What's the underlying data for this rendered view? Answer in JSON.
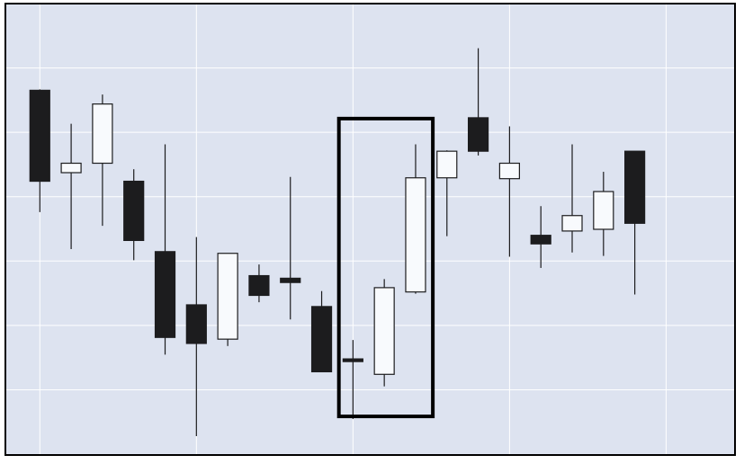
{
  "chart_data": {
    "type": "candlestick",
    "title": "",
    "xlabel": "",
    "ylabel": "",
    "grid": true,
    "colors": {
      "background": "#dde3f0",
      "grid": "#ffffff",
      "bear_body": "#1c1c1e",
      "bull_body": "#f8fafd",
      "outline": "#1c1c1e",
      "frame": "#000000"
    },
    "x_range": [
      -1.1,
      22.2
    ],
    "y_range": [
      47.4,
      100
    ],
    "candles": [
      {
        "open": 89.9,
        "high": 90.0,
        "low": 75.7,
        "close": 79.3
      },
      {
        "open": 80.3,
        "high": 86.0,
        "low": 71.4,
        "close": 81.4
      },
      {
        "open": 81.4,
        "high": 89.4,
        "low": 74.1,
        "close": 88.3
      },
      {
        "open": 79.3,
        "high": 80.7,
        "low": 70.1,
        "close": 72.4
      },
      {
        "open": 71.1,
        "high": 83.6,
        "low": 59.1,
        "close": 61.1
      },
      {
        "open": 64.9,
        "high": 72.8,
        "low": 49.6,
        "close": 60.4
      },
      {
        "open": 60.9,
        "high": 70.6,
        "low": 60.1,
        "close": 70.9
      },
      {
        "open": 68.3,
        "high": 69.6,
        "low": 65.2,
        "close": 66.0
      },
      {
        "open": 68.0,
        "high": 79.8,
        "low": 63.2,
        "close": 67.5
      },
      {
        "open": 64.7,
        "high": 66.5,
        "low": 57.3,
        "close": 57.1
      },
      {
        "open": 58.6,
        "high": 60.8,
        "low": 51.6,
        "close": 58.4
      },
      {
        "open": 56.8,
        "high": 67.9,
        "low": 55.4,
        "close": 66.9
      },
      {
        "open": 66.4,
        "high": 83.6,
        "low": 66.2,
        "close": 79.7
      },
      {
        "open": 79.7,
        "high": 82.9,
        "low": 72.9,
        "close": 82.8
      },
      {
        "open": 86.7,
        "high": 94.8,
        "low": 82.3,
        "close": 82.8
      },
      {
        "open": 79.6,
        "high": 85.7,
        "low": 70.5,
        "close": 81.4
      },
      {
        "open": 73.0,
        "high": 76.4,
        "low": 69.2,
        "close": 72.0
      },
      {
        "open": 73.5,
        "high": 83.6,
        "low": 71.0,
        "close": 75.3
      },
      {
        "open": 73.7,
        "high": 80.4,
        "low": 70.6,
        "close": 78.1
      },
      {
        "open": 82.8,
        "high": 82.8,
        "low": 66.1,
        "close": 74.4
      }
    ],
    "highlight": {
      "from_index": 9.55,
      "to_index": 12.55,
      "y_top": 86.6,
      "y_bottom": 51.9
    }
  }
}
